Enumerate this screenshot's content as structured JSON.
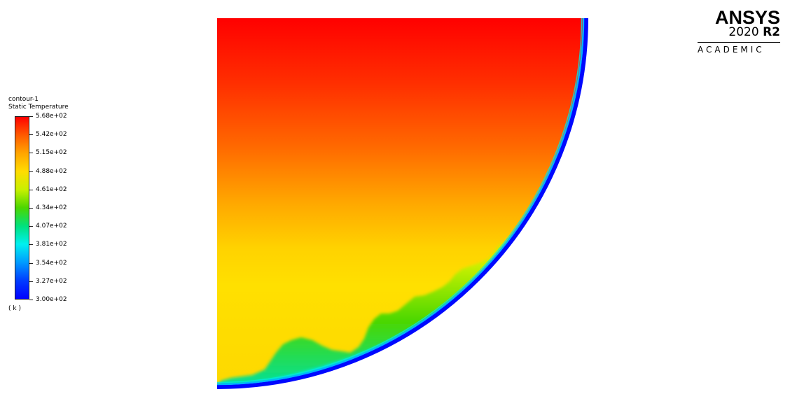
{
  "legend": {
    "contour_name": "contour-1",
    "variable": "Static Temperature",
    "units": "( k )",
    "ticks": [
      "5.68e+02",
      "5.42e+02",
      "5.15e+02",
      "4.88e+02",
      "4.61e+02",
      "4.34e+02",
      "4.07e+02",
      "3.81e+02",
      "3.54e+02",
      "3.27e+02",
      "3.00e+02"
    ],
    "range": {
      "min": 300,
      "max": 568
    },
    "colormap": [
      "#ff0000",
      "#ff5a00",
      "#ffa500",
      "#ffdc00",
      "#c8f000",
      "#4bd700",
      "#00e17d",
      "#00f0f0",
      "#009bff",
      "#003cff",
      "#0000ff"
    ]
  },
  "contour_colors": {
    "top": "#ff0000",
    "middle": "#ffdd00",
    "cold_plume": "#4bd700",
    "wall": "#0000ff"
  },
  "logo": {
    "brand": "ANSYS",
    "version_year": "2020",
    "version_release": "R2",
    "edition": "ACADEMIC"
  }
}
